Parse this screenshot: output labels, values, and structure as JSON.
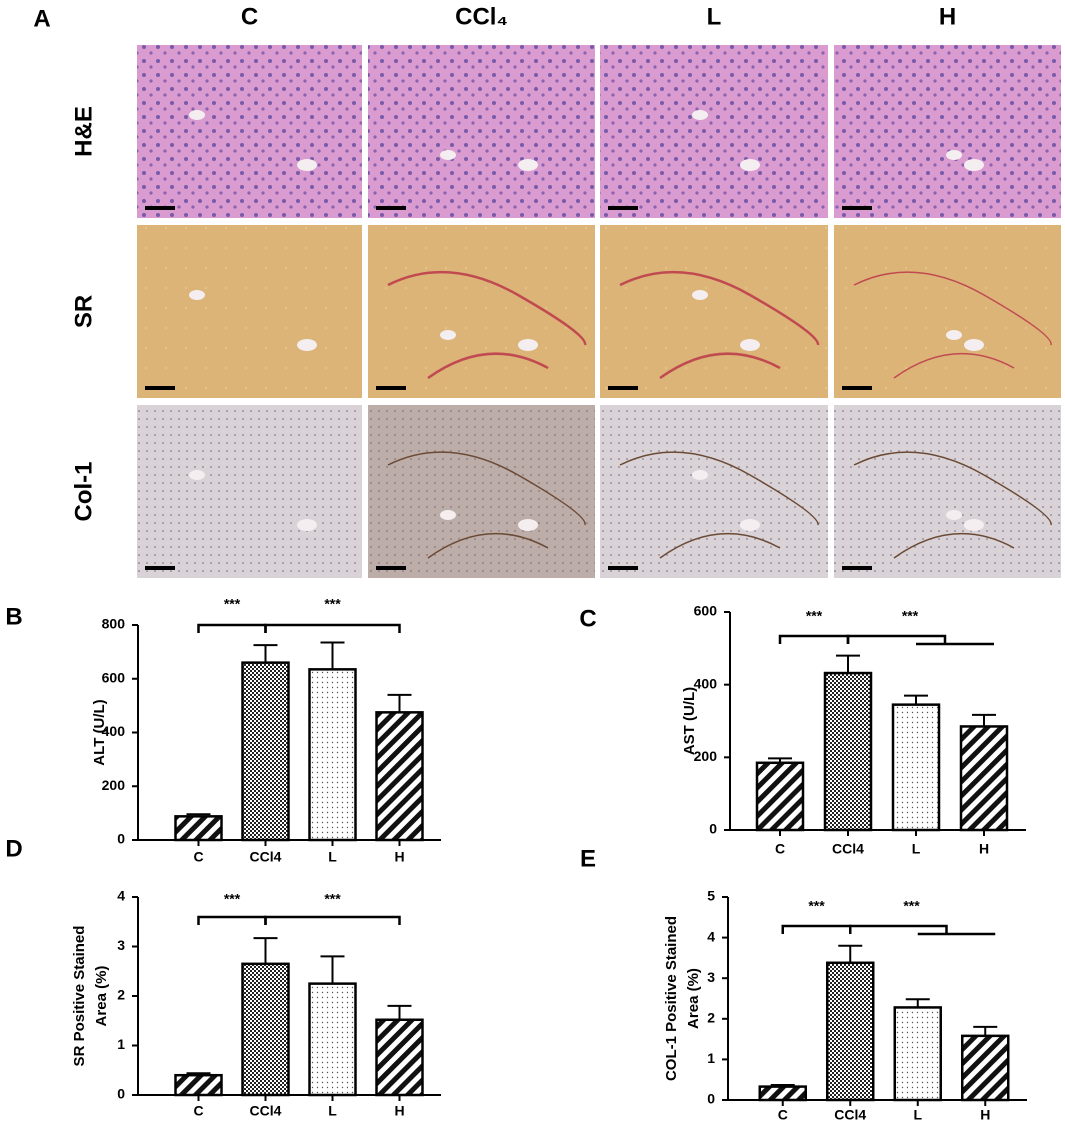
{
  "panel_a": {
    "label": "A",
    "columns": [
      "C",
      "CCl₄",
      "L",
      "H"
    ],
    "rows": [
      "H&E",
      "SR",
      "Col-1"
    ]
  },
  "chart_data": [
    {
      "type": "bar",
      "panel": "B",
      "ylabel": [
        "ALT (U/L)"
      ],
      "categories": [
        "C",
        "CCl4",
        "L",
        "H"
      ],
      "values": [
        88,
        660,
        635,
        475
      ],
      "errors": [
        8,
        65,
        100,
        65
      ],
      "patterns": [
        "hatch",
        "check",
        "dots",
        "hatch"
      ],
      "ylim": [
        0,
        800
      ],
      "yticks": [
        0,
        200,
        400,
        600,
        800
      ],
      "annotations": [
        "***",
        "***"
      ]
    },
    {
      "type": "bar",
      "panel": "C",
      "ylabel": [
        "AST (U/L)"
      ],
      "categories": [
        "C",
        "CCl4",
        "L",
        "H"
      ],
      "values": [
        185,
        432,
        345,
        285
      ],
      "errors": [
        12,
        48,
        25,
        32
      ],
      "patterns": [
        "hatch",
        "check",
        "dots",
        "hatch"
      ],
      "ylim": [
        0,
        600
      ],
      "yticks": [
        0,
        200,
        400,
        600
      ],
      "annotations": [
        "***",
        "***"
      ]
    },
    {
      "type": "bar",
      "panel": "D",
      "ylabel": [
        "SR Positive Stained",
        "Area (%)"
      ],
      "categories": [
        "C",
        "CCl4",
        "L",
        "H"
      ],
      "values": [
        0.4,
        2.65,
        2.25,
        1.52
      ],
      "errors": [
        0.04,
        0.52,
        0.55,
        0.28
      ],
      "patterns": [
        "hatch",
        "check",
        "dots",
        "hatch"
      ],
      "ylim": [
        0,
        4
      ],
      "yticks": [
        0,
        1,
        2,
        3,
        4
      ],
      "annotations": [
        "***",
        "***"
      ]
    },
    {
      "type": "bar",
      "panel": "E",
      "ylabel": [
        "COL-1 Positive Stained",
        "Area (%)"
      ],
      "categories": [
        "C",
        "CCl4",
        "L",
        "H"
      ],
      "values": [
        0.33,
        3.38,
        2.28,
        1.58
      ],
      "errors": [
        0.04,
        0.42,
        0.2,
        0.22
      ],
      "patterns": [
        "hatch",
        "check",
        "dots",
        "hatch"
      ],
      "ylim": [
        0,
        5
      ],
      "yticks": [
        0,
        1,
        2,
        3,
        4,
        5
      ],
      "annotations": [
        "***",
        "***"
      ]
    }
  ]
}
